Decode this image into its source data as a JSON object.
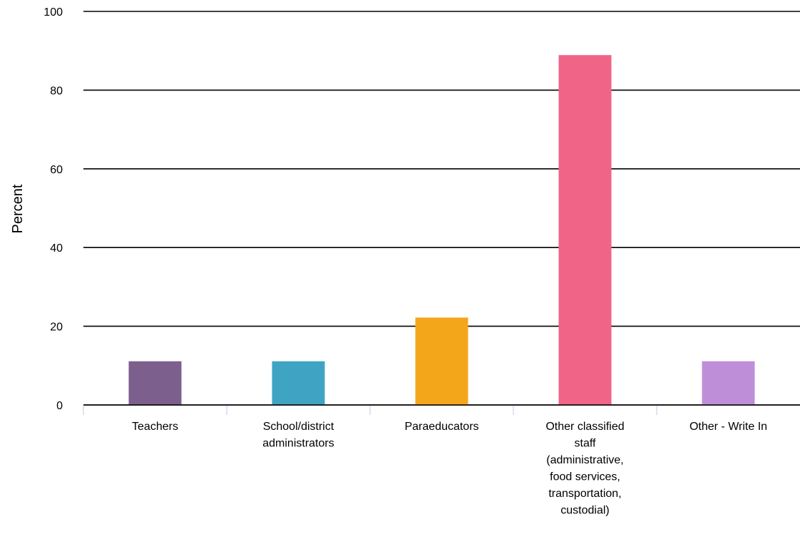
{
  "chart_data": {
    "type": "bar",
    "ylabel": "Percent",
    "ylim": [
      0,
      100
    ],
    "yticks": [
      0,
      20,
      40,
      60,
      80,
      100
    ],
    "grid": true,
    "categories": [
      [
        "Teachers"
      ],
      [
        "School/district",
        "administrators"
      ],
      [
        "Paraeducators"
      ],
      [
        "Other classified",
        "staff",
        "(administrative,",
        "food services,",
        "transportation,",
        "custodial)"
      ],
      [
        "Other - Write In"
      ]
    ],
    "values": [
      11.1,
      11.1,
      22.2,
      88.9,
      11.1
    ],
    "colors": [
      "#7d5f8e",
      "#3fa4c4",
      "#f4a61b",
      "#f06487",
      "#be8fd8"
    ]
  }
}
